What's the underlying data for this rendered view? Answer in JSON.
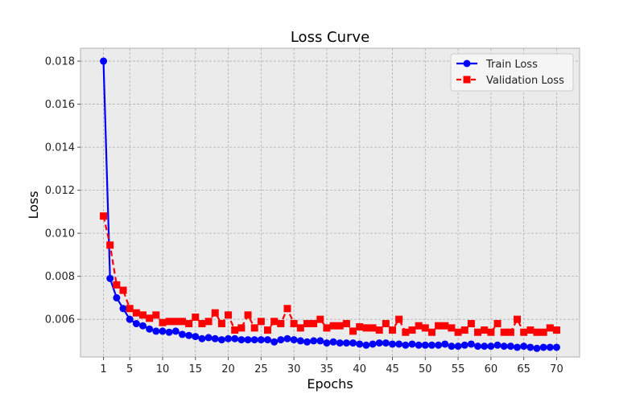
{
  "chart_data": {
    "type": "line",
    "title": "Loss Curve",
    "xlabel": "Epochs",
    "ylabel": "Loss",
    "xlim": [
      -2.5,
      73.5
    ],
    "ylim": [
      0.00425,
      0.0186
    ],
    "xticks": [
      1,
      5,
      10,
      15,
      20,
      25,
      30,
      35,
      40,
      45,
      50,
      55,
      60,
      65,
      70
    ],
    "yticks": [
      0.006,
      0.008,
      0.01,
      0.012,
      0.014,
      0.016,
      0.018
    ],
    "ytick_labels": [
      "0.006",
      "0.008",
      "0.010",
      "0.012",
      "0.014",
      "0.016",
      "0.018"
    ],
    "grid": true,
    "legend": "top-right",
    "x": [
      1,
      2,
      3,
      4,
      5,
      6,
      7,
      8,
      9,
      10,
      11,
      12,
      13,
      14,
      15,
      16,
      17,
      18,
      19,
      20,
      21,
      22,
      23,
      24,
      25,
      26,
      27,
      28,
      29,
      30,
      31,
      32,
      33,
      34,
      35,
      36,
      37,
      38,
      39,
      40,
      41,
      42,
      43,
      44,
      45,
      46,
      47,
      48,
      49,
      50,
      51,
      52,
      53,
      54,
      55,
      56,
      57,
      58,
      59,
      60,
      61,
      62,
      63,
      64,
      65,
      66,
      67,
      68,
      69,
      70
    ],
    "series": [
      {
        "name": "Train Loss",
        "color": "#0000ff",
        "marker": "circle",
        "linestyle": "solid",
        "values": [
          0.018,
          0.0079,
          0.007,
          0.0065,
          0.006,
          0.0058,
          0.0057,
          0.00555,
          0.00545,
          0.00545,
          0.0054,
          0.00545,
          0.0053,
          0.00525,
          0.0052,
          0.0051,
          0.00515,
          0.0051,
          0.00505,
          0.0051,
          0.0051,
          0.00505,
          0.00505,
          0.00505,
          0.00505,
          0.00505,
          0.00495,
          0.00505,
          0.0051,
          0.00505,
          0.005,
          0.00495,
          0.005,
          0.005,
          0.0049,
          0.00495,
          0.0049,
          0.0049,
          0.0049,
          0.00485,
          0.0048,
          0.00485,
          0.0049,
          0.0049,
          0.00485,
          0.00485,
          0.0048,
          0.00485,
          0.0048,
          0.0048,
          0.0048,
          0.0048,
          0.00485,
          0.00475,
          0.00475,
          0.0048,
          0.00485,
          0.00475,
          0.00475,
          0.00475,
          0.0048,
          0.00475,
          0.00475,
          0.0047,
          0.00475,
          0.0047,
          0.00465,
          0.0047,
          0.0047,
          0.0047
        ]
      },
      {
        "name": "Validation Loss",
        "color": "#ff0000",
        "marker": "square",
        "linestyle": "dashed",
        "values": [
          0.0108,
          0.00945,
          0.0076,
          0.00735,
          0.0065,
          0.0063,
          0.0062,
          0.00605,
          0.0062,
          0.00585,
          0.0059,
          0.0059,
          0.0059,
          0.0058,
          0.0061,
          0.0058,
          0.0059,
          0.0063,
          0.0058,
          0.0062,
          0.0055,
          0.0056,
          0.0062,
          0.0056,
          0.0059,
          0.0055,
          0.0059,
          0.0058,
          0.0065,
          0.0058,
          0.0056,
          0.0058,
          0.0058,
          0.006,
          0.0056,
          0.0057,
          0.0057,
          0.0058,
          0.00545,
          0.00565,
          0.0056,
          0.0056,
          0.0055,
          0.0058,
          0.0055,
          0.006,
          0.0054,
          0.0055,
          0.0057,
          0.0056,
          0.0054,
          0.0057,
          0.0057,
          0.0056,
          0.0054,
          0.0055,
          0.0058,
          0.0054,
          0.0055,
          0.0054,
          0.0058,
          0.0054,
          0.0054,
          0.006,
          0.0054,
          0.0055,
          0.0054,
          0.0054,
          0.0056,
          0.0055
        ]
      }
    ]
  }
}
